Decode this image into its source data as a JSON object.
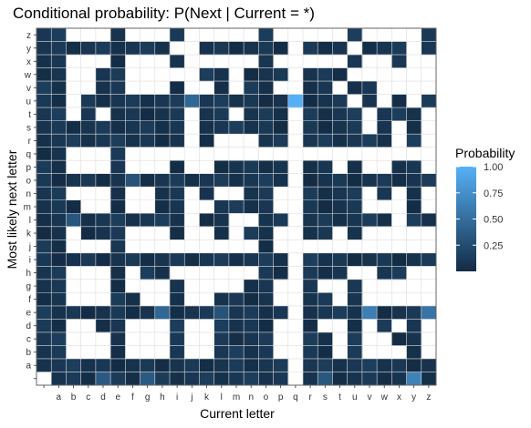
{
  "chart_data": {
    "type": "heatmap",
    "title": "Conditional probability: P(Next | Current = *)",
    "xlabel": "Current letter",
    "ylabel": "Most likely next letter",
    "x_categories": [
      "",
      "a",
      "b",
      "c",
      "d",
      "e",
      "f",
      "g",
      "h",
      "i",
      "j",
      "k",
      "l",
      "m",
      "n",
      "o",
      "p",
      "q",
      "r",
      "s",
      "t",
      "u",
      "v",
      "w",
      "x",
      "y",
      "z"
    ],
    "y_categories": [
      "",
      "a",
      "b",
      "c",
      "d",
      "e",
      "f",
      "g",
      "h",
      "i",
      "j",
      "k",
      "l",
      "m",
      "n",
      "o",
      "p",
      "q",
      "r",
      "s",
      "t",
      "u",
      "v",
      "w",
      "x",
      "y",
      "z"
    ],
    "legend": {
      "title": "Probability",
      "breaks": [
        "0.25",
        "0.50",
        "0.75",
        "1.00"
      ],
      "break_values": [
        0.25,
        0.5,
        0.75,
        1.0
      ],
      "range": [
        0.0,
        1.0
      ],
      "color_low": "#132b43",
      "color_high": "#56b1f7"
    },
    "grid": true,
    "colors": {
      "panel_border": "#666666",
      "grid": "#dddddd",
      "background": "#ffffff"
    },
    "empty_rows_by_current": {
      "": [
        ""
      ],
      "a": [],
      "b": [
        "b",
        "c",
        "d",
        "f",
        "g",
        "h",
        "j",
        "k",
        "n",
        "p",
        "q",
        "t",
        "u",
        "v",
        "w",
        "x",
        "z"
      ],
      "c": [
        "b",
        "c",
        "d",
        "f",
        "g",
        "h",
        "j",
        "m",
        "n",
        "p",
        "q",
        "v",
        "w",
        "x",
        "z"
      ],
      "d": [
        "b",
        "c",
        "f",
        "g",
        "h",
        "j",
        "m",
        "n",
        "p",
        "q",
        "t",
        "x",
        "z"
      ],
      "e": [],
      "f": [
        "b",
        "c",
        "d",
        "g",
        "h",
        "j",
        "k",
        "m",
        "n",
        "p",
        "q",
        "v",
        "w",
        "x",
        "z"
      ],
      "g": [
        "b",
        "c",
        "d",
        "f",
        "g",
        "j",
        "k",
        "m",
        "n",
        "p",
        "q",
        "v",
        "w",
        "x",
        "z"
      ],
      "h": [
        "b",
        "c",
        "d",
        "f",
        "g",
        "j",
        "k",
        "p",
        "q",
        "v",
        "w",
        "x",
        "z"
      ],
      "i": [
        "h",
        "j",
        "q",
        "w",
        "y"
      ],
      "j": [
        "b",
        "c",
        "d",
        "f",
        "g",
        "h",
        "j",
        "k",
        "l",
        "m",
        "n",
        "p",
        "q",
        "r",
        "s",
        "t",
        "v",
        "w",
        "x",
        "y",
        "z"
      ],
      "k": [
        "b",
        "c",
        "d",
        "f",
        "g",
        "h",
        "j",
        "k",
        "m",
        "p",
        "q",
        "v",
        "x",
        "z"
      ],
      "l": [
        "g",
        "h",
        "j",
        "n",
        "q",
        "r",
        "x",
        "z"
      ],
      "m": [
        "g",
        "h",
        "j",
        "k",
        "l",
        "n",
        "q",
        "r",
        "t",
        "v",
        "w",
        "x",
        "z"
      ],
      "n": [
        "h",
        "j",
        "l",
        "q",
        "r",
        "x",
        "z"
      ],
      "o": [
        "q"
      ],
      "p": [
        "b",
        "c",
        "d",
        "f",
        "g",
        "j",
        "k",
        "m",
        "n",
        "q",
        "v",
        "x",
        "z"
      ],
      "q": [
        "",
        "a",
        "b",
        "c",
        "d",
        "e",
        "f",
        "g",
        "h",
        "i",
        "j",
        "k",
        "l",
        "m",
        "n",
        "o",
        "p",
        "q",
        "r",
        "s",
        "t",
        "v",
        "w",
        "x",
        "y",
        "z"
      ],
      "r": [
        "j",
        "q",
        "x",
        "z"
      ],
      "s": [
        "d",
        "g",
        "j",
        "q",
        "x",
        "z"
      ],
      "t": [
        "b",
        "c",
        "d",
        "f",
        "g",
        "j",
        "k",
        "p",
        "q",
        "v",
        "x",
        "z"
      ],
      "u": [
        "h",
        "j",
        "q",
        "u",
        "w",
        "y"
      ],
      "v": [
        "b",
        "c",
        "d",
        "f",
        "g",
        "h",
        "j",
        "k",
        "m",
        "n",
        "p",
        "q",
        "s",
        "t",
        "w",
        "x",
        "z"
      ],
      "w": [
        "b",
        "c",
        "f",
        "g",
        "j",
        "k",
        "m",
        "p",
        "q",
        "u",
        "v",
        "w",
        "x",
        "z"
      ],
      "x": [
        "b",
        "d",
        "f",
        "g",
        "j",
        "k",
        "l",
        "m",
        "n",
        "q",
        "r",
        "s",
        "v",
        "w",
        "z"
      ],
      "y": [
        "f",
        "g",
        "h",
        "j",
        "k",
        "q",
        "u",
        "v",
        "w",
        "x",
        "y",
        "z"
      ],
      "z": [
        "b",
        "c",
        "d",
        "f",
        "g",
        "h",
        "j",
        "k",
        "m",
        "n",
        "p",
        "q",
        "r",
        "s",
        "t",
        "v",
        "w",
        "x"
      ]
    },
    "highlighted_cells": [
      {
        "current": "q",
        "next": "u",
        "probability": 0.99
      },
      {
        "current": "j",
        "next": "u",
        "probability": 0.45
      },
      {
        "current": "y",
        "next": "",
        "probability": 0.65
      },
      {
        "current": "z",
        "next": "e",
        "probability": 0.55
      },
      {
        "current": "v",
        "next": "e",
        "probability": 0.62
      },
      {
        "current": "b",
        "next": "l",
        "probability": 0.32
      },
      {
        "current": "h",
        "next": "e",
        "probability": 0.45
      },
      {
        "current": "d",
        "next": "",
        "probability": 0.35
      },
      {
        "current": "g",
        "next": "",
        "probability": 0.35
      },
      {
        "current": "s",
        "next": "",
        "probability": 0.33
      },
      {
        "current": "f",
        "next": "o",
        "probability": 0.3
      },
      {
        "current": "l",
        "next": "e",
        "probability": 0.3
      }
    ]
  }
}
